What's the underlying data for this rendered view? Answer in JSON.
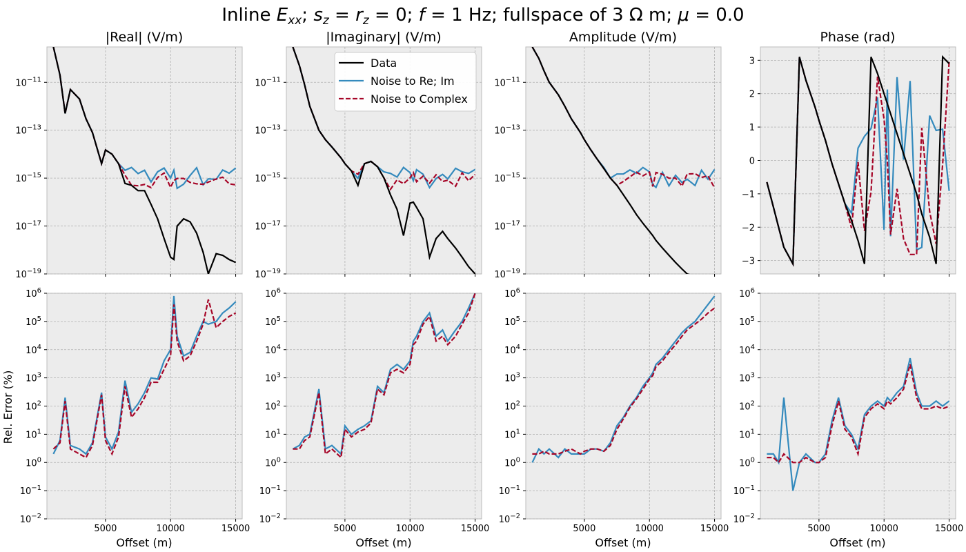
{
  "chart_data": {
    "type": "line",
    "title": "Inline Exx; sz=rz=0; f=1 Hz; fullspace of 3 Ωm; μ=0.0",
    "title_parts": {
      "prefix": "Inline ",
      "field": "E",
      "field_sub": "xx",
      "mid1": "; ",
      "s": "s",
      "s_sub": "z",
      "eq1": " = ",
      "r": "r",
      "r_sub": "z",
      "eq2": " = 0; ",
      "f": "f",
      "eq3": " = 1 Hz; fullspace of 3 Ω m; ",
      "mu": "μ",
      "eq4": " = 0.0"
    },
    "legend": {
      "placement": "top",
      "entries": [
        {
          "name": "Data",
          "color": "#000000",
          "dash": false
        },
        {
          "name": "Noise to Re; Im",
          "color": "#348abd",
          "dash": false
        },
        {
          "name": "Noise to Complex",
          "color": "#a60628",
          "dash": true
        }
      ]
    },
    "colors": {
      "data": "#000000",
      "noise_reim": "#348abd",
      "noise_complex": "#a60628",
      "axes_bg": "#ececec"
    },
    "xlabel": "Offset (m)",
    "ylabel_bottom": "Rel. Error (%)",
    "xlim": [
      500,
      15500
    ],
    "xticks": [
      5000,
      10000,
      15000
    ],
    "grid": true,
    "top_row": [
      {
        "title": "|Real| (V/m)",
        "yscale": "log",
        "ylim": [
          1e-19,
          3e-10
        ],
        "yticks_exp": [
          -11,
          -13,
          -15,
          -17,
          -19
        ],
        "kind": "real"
      },
      {
        "title": "|Imaginary| (V/m)",
        "yscale": "log",
        "ylim": [
          1e-19,
          3e-10
        ],
        "yticks_exp": [
          -11,
          -13,
          -15,
          -17,
          -19
        ],
        "kind": "imag"
      },
      {
        "title": "Amplitude (V/m)",
        "yscale": "log",
        "ylim": [
          1e-19,
          3e-10
        ],
        "yticks_exp": [
          -11,
          -13,
          -15,
          -17,
          -19
        ],
        "kind": "amp"
      },
      {
        "title": "Phase (rad)",
        "yscale": "linear",
        "ylim": [
          -3.4,
          3.4
        ],
        "yticks": [
          3,
          2,
          1,
          0,
          -1,
          -2,
          -3
        ],
        "kind": "phase"
      }
    ],
    "bottom_row": {
      "yscale": "log",
      "ylim": [
        0.01,
        1000000
      ],
      "yticks": [
        {
          "base": "10",
          "exp": "6"
        },
        {
          "base": "10",
          "exp": "5"
        },
        {
          "base": "10",
          "exp": "4"
        },
        {
          "base": "10",
          "exp": "3"
        },
        {
          "base": "10",
          "exp": "2"
        },
        {
          "base": "10",
          "exp": "1"
        },
        {
          "base": "10",
          "exp": "0"
        },
        {
          "base": "10",
          "exp": "−1"
        },
        {
          "base": "10",
          "exp": "−2"
        }
      ]
    },
    "series_data": {
      "offset": [
        1000,
        1500,
        1900,
        2300,
        3000,
        3500,
        4000,
        4700,
        5000,
        5500,
        6000,
        6500,
        7000,
        7500,
        8000,
        8500,
        9000,
        9500,
        10000,
        10250,
        10500,
        11000,
        11500,
        12000,
        12500,
        12900,
        13500,
        14000,
        14500,
        15000
      ],
      "real_abs_data": [
        3e-10,
        2e-11,
        5e-13,
        5e-12,
        2e-12,
        3e-13,
        8e-14,
        4e-15,
        1.5e-14,
        1e-14,
        4e-15,
        6e-16,
        5e-16,
        3e-16,
        3e-16,
        8e-17,
        2e-17,
        3e-18,
        5e-19,
        4e-19,
        1e-17,
        2e-17,
        1.5e-17,
        5e-18,
        8e-19,
        1e-19,
        7e-19,
        6e-19,
        4e-19,
        3e-19
      ],
      "imag_abs_data": [
        3e-10,
        5e-11,
        8e-12,
        1e-12,
        1e-13,
        4e-14,
        2e-14,
        7e-15,
        4e-15,
        2e-15,
        5e-16,
        4e-15,
        5e-15,
        3e-15,
        1e-15,
        2e-16,
        5e-17,
        4e-18,
        9e-17,
        1e-16,
        6e-17,
        2e-17,
        5e-19,
        3e-18,
        6e-18,
        3e-18,
        1.2e-18,
        5e-19,
        2e-19,
        1e-19
      ],
      "amplitude_data": [
        3e-10,
        1e-10,
        3e-11,
        1e-11,
        3e-12,
        1e-12,
        3e-13,
        8e-14,
        4e-14,
        1.5e-14,
        6e-15,
        2.5e-15,
        1e-15,
        5e-16,
        2e-16,
        8e-17,
        3e-17,
        1.3e-17,
        6e-18,
        4e-18,
        2.5e-18,
        1.2e-18,
        6e-19,
        3e-19,
        1.6e-19,
        1e-19,
        8e-20,
        6e-20,
        4e-20,
        3e-20
      ],
      "phase_data": [
        -0.65,
        -1.4,
        -2.0,
        -2.6,
        -3.1,
        3.1,
        2.4,
        1.6,
        1.2,
        0.6,
        -0.1,
        -0.7,
        -1.3,
        -1.8,
        -2.4,
        -3.1,
        3.1,
        2.6,
        2.0,
        1.7,
        1.4,
        0.8,
        0.2,
        -0.4,
        -1.0,
        -1.6,
        -2.3,
        -3.1,
        3.1,
        2.9
      ],
      "noise_floor_amplitude": 1e-15,
      "relerr_real_noise_reim": [
        2,
        6,
        200,
        4,
        3,
        2,
        5,
        300,
        8,
        3,
        12,
        800,
        60,
        120,
        300,
        1000,
        900,
        4000,
        10000,
        800000,
        30000,
        6000,
        8000,
        30000,
        100000,
        80000,
        100000,
        200000,
        300000,
        500000
      ],
      "relerr_real_noise_complex": [
        3,
        5,
        150,
        3,
        2,
        1.5,
        4,
        250,
        6,
        2,
        8,
        500,
        40,
        80,
        200,
        700,
        700,
        2000,
        6000,
        400000,
        20000,
        4000,
        6000,
        20000,
        80000,
        600000,
        60000,
        100000,
        150000,
        200000
      ],
      "relerr_imag_noise_reim": [
        3,
        4,
        8,
        10,
        400,
        3,
        4,
        2,
        20,
        10,
        15,
        20,
        30,
        500,
        300,
        2000,
        3000,
        2000,
        4000,
        20000,
        30000,
        100000,
        200000,
        30000,
        50000,
        20000,
        50000,
        100000,
        300000,
        1000000
      ],
      "relerr_imag_noise_complex": [
        3,
        3,
        6,
        8,
        300,
        2,
        3,
        1.5,
        15,
        8,
        12,
        15,
        25,
        400,
        250,
        1500,
        2000,
        1500,
        3000,
        15000,
        20000,
        80000,
        150000,
        20000,
        30000,
        15000,
        30000,
        80000,
        200000,
        1000000
      ],
      "relerr_amp_noise_reim": [
        1,
        3,
        2,
        3,
        1.5,
        3,
        2,
        2,
        2,
        3,
        3,
        2.5,
        5,
        20,
        40,
        100,
        200,
        500,
        1000,
        1500,
        3000,
        5000,
        10000,
        20000,
        40000,
        60000,
        100000,
        200000,
        400000,
        800000
      ],
      "relerr_amp_noise_complex": [
        2,
        2,
        2.5,
        2,
        2,
        2.5,
        3,
        2,
        2.5,
        3,
        3,
        2.5,
        4,
        15,
        35,
        90,
        180,
        400,
        900,
        1200,
        2500,
        4000,
        8000,
        15000,
        30000,
        50000,
        80000,
        120000,
        200000,
        300000
      ],
      "relerr_phase_noise_reim": [
        2,
        2,
        1,
        200,
        0.1,
        1,
        2,
        1,
        1,
        2,
        30,
        200,
        20,
        10,
        3,
        50,
        100,
        150,
        100,
        200,
        150,
        300,
        500,
        5000,
        300,
        100,
        100,
        150,
        100,
        150
      ],
      "relerr_phase_noise_complex": [
        1.5,
        1.5,
        1,
        2,
        1,
        1,
        1.5,
        1,
        1,
        1.5,
        20,
        150,
        15,
        8,
        2,
        40,
        80,
        120,
        80,
        150,
        120,
        200,
        400,
        3000,
        200,
        80,
        80,
        100,
        80,
        100
      ]
    }
  }
}
